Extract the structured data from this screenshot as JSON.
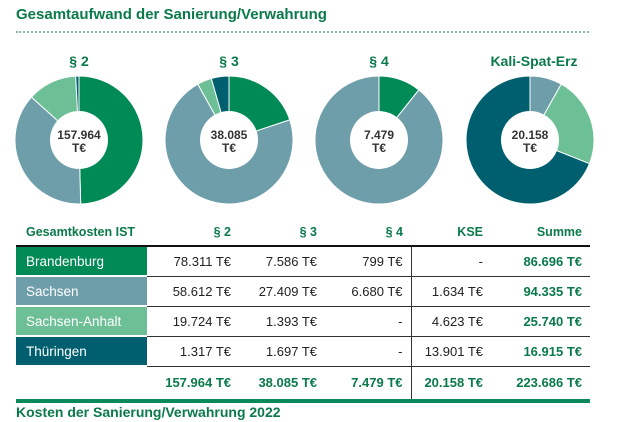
{
  "title": "Gesamtaufwand der Sanierung/Verwahrung",
  "footer_title": "Kosten der Sanierung/Verwahrung 2022",
  "colors": {
    "Brandenburg": "#008a55",
    "Sachsen": "#6f9eab",
    "Sachsen-Anhalt": "#6dbf96",
    "Thüringen": "#005f6e",
    "accent": "#0a7a4a"
  },
  "chart_data": [
    {
      "type": "pie",
      "title": "§ 2",
      "center_label": [
        "157.964",
        "T€"
      ],
      "labels": [
        "Brandenburg",
        "Sachsen",
        "Sachsen-Anhalt",
        "Thüringen"
      ],
      "values": [
        78311,
        58612,
        19724,
        1317
      ]
    },
    {
      "type": "pie",
      "title": "§ 3",
      "center_label": [
        "38.085",
        "T€"
      ],
      "labels": [
        "Brandenburg",
        "Sachsen",
        "Sachsen-Anhalt",
        "Thüringen"
      ],
      "values": [
        7586,
        27409,
        1393,
        1697
      ]
    },
    {
      "type": "pie",
      "title": "§ 4",
      "center_label": [
        "7.479",
        "T€"
      ],
      "labels": [
        "Brandenburg",
        "Sachsen",
        "Sachsen-Anhalt",
        "Thüringen"
      ],
      "values": [
        799,
        6680,
        0,
        0
      ]
    },
    {
      "type": "pie",
      "title": "Kali-Spat-Erz",
      "center_label": [
        "20.158",
        "T€"
      ],
      "labels": [
        "Brandenburg",
        "Sachsen",
        "Sachsen-Anhalt",
        "Thüringen"
      ],
      "values": [
        0,
        1634,
        4623,
        13901
      ]
    }
  ],
  "table": {
    "headers": [
      "Gesamtkosten IST",
      "§ 2",
      "§ 3",
      "§ 4",
      "KSE",
      "Summe"
    ],
    "rows": [
      {
        "region": "Brandenburg",
        "cells": [
          "78.311 T€",
          "7.586 T€",
          "799 T€",
          "-"
        ],
        "sum": "86.696 T€"
      },
      {
        "region": "Sachsen",
        "cells": [
          "58.612 T€",
          "27.409 T€",
          "6.680 T€",
          "1.634 T€"
        ],
        "sum": "94.335 T€"
      },
      {
        "region": "Sachsen-Anhalt",
        "cells": [
          "19.724 T€",
          "1.393 T€",
          "-",
          "4.623 T€"
        ],
        "sum": "25.740 T€"
      },
      {
        "region": "Thüringen",
        "cells": [
          "1.317 T€",
          "1.697 T€",
          "-",
          "13.901 T€"
        ],
        "sum": "16.915 T€"
      }
    ],
    "totals": [
      "157.964 T€",
      "38.085 T€",
      "7.479 T€",
      "20.158 T€",
      "223.686 T€"
    ]
  }
}
